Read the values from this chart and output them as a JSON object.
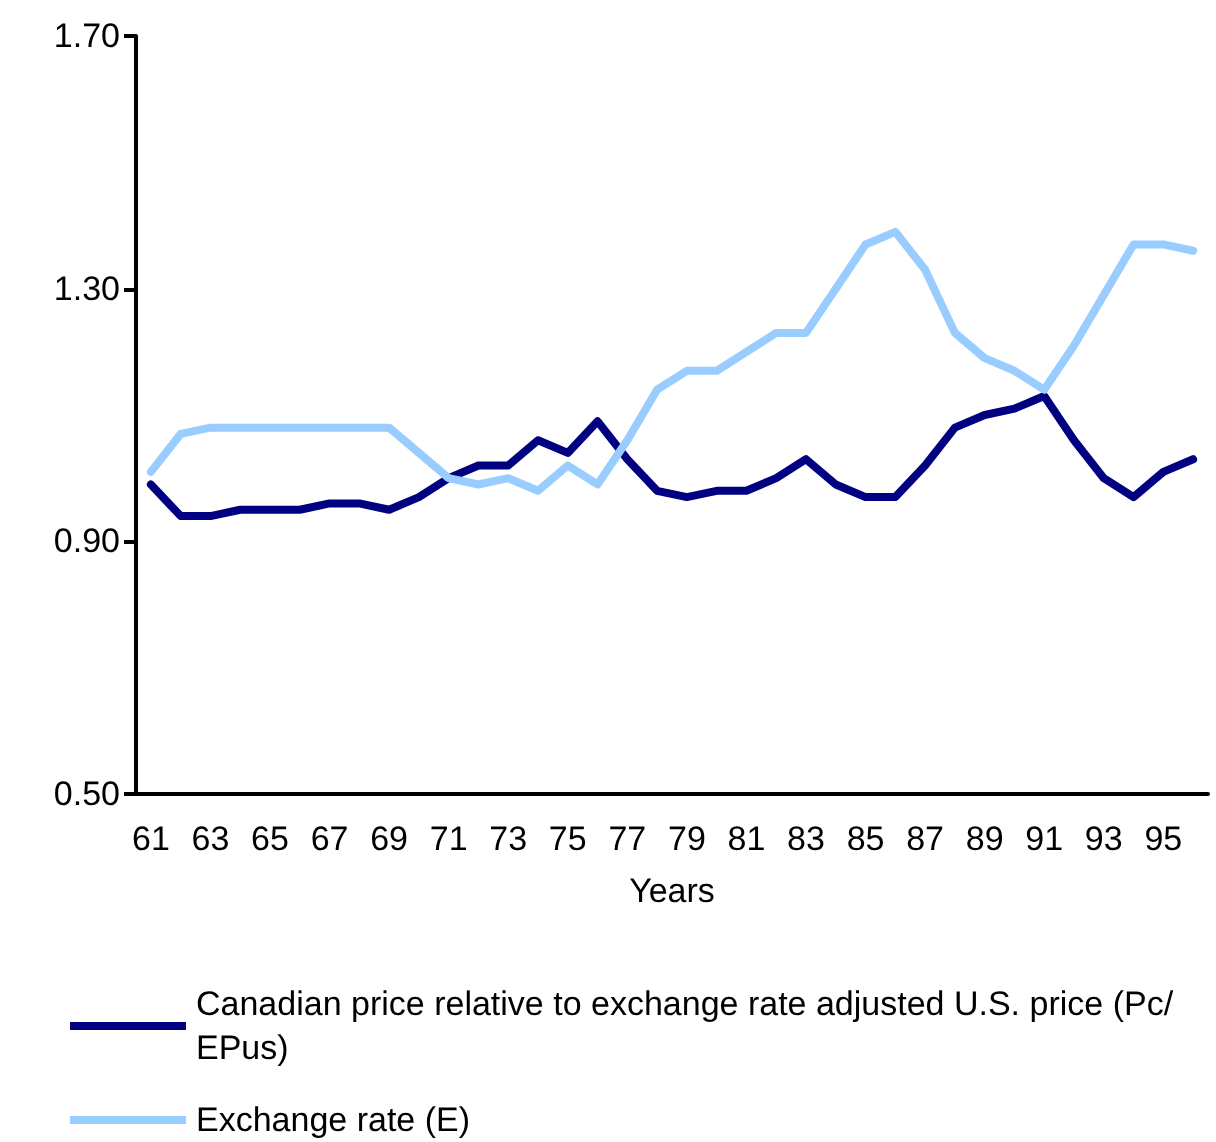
{
  "chart_data": {
    "type": "line",
    "xlabel": "Years",
    "categories": [
      "61",
      null,
      "63",
      null,
      "65",
      null,
      "67",
      null,
      "69",
      null,
      "71",
      null,
      "73",
      null,
      "75",
      null,
      "77",
      null,
      "79",
      null,
      "81",
      null,
      "83",
      null,
      "85",
      null,
      "87",
      null,
      "89",
      null,
      "91",
      null,
      "93",
      null,
      "95",
      null
    ],
    "series": [
      {
        "name": "Canadian price relative to exchange rate adjusted U.S. price (Pc/EPus)",
        "color": "#000080",
        "values": [
          0.99,
          0.94,
          0.94,
          0.95,
          0.95,
          0.95,
          0.96,
          0.96,
          0.95,
          0.97,
          1.0,
          1.02,
          1.02,
          1.06,
          1.04,
          1.09,
          1.03,
          0.98,
          0.97,
          0.98,
          0.98,
          1.0,
          1.03,
          0.99,
          0.97,
          0.97,
          1.02,
          1.08,
          1.1,
          1.11,
          1.13,
          1.06,
          1.0,
          0.97,
          1.01,
          1.03
        ]
      },
      {
        "name": "Exchange rate (E)",
        "color": "#99ccff",
        "values": [
          1.01,
          1.07,
          1.08,
          1.08,
          1.08,
          1.08,
          1.08,
          1.08,
          1.08,
          1.04,
          1.0,
          0.99,
          1.0,
          0.98,
          1.02,
          0.99,
          1.06,
          1.14,
          1.17,
          1.17,
          1.2,
          1.23,
          1.23,
          1.3,
          1.37,
          1.39,
          1.33,
          1.23,
          1.19,
          1.17,
          1.14,
          1.21,
          1.29,
          1.37,
          1.37,
          1.36
        ]
      }
    ],
    "ylim": [
      0.5,
      1.7
    ],
    "yticks": [
      {
        "value": 0.5,
        "label": "0.50"
      },
      {
        "value": 0.9,
        "label": "0.90"
      },
      {
        "value": 1.3,
        "label": "1.30"
      },
      {
        "value": 1.7,
        "label": "1.70"
      }
    ],
    "grid": false,
    "legend": "bottom",
    "marker": "none",
    "line_style": "solid"
  }
}
